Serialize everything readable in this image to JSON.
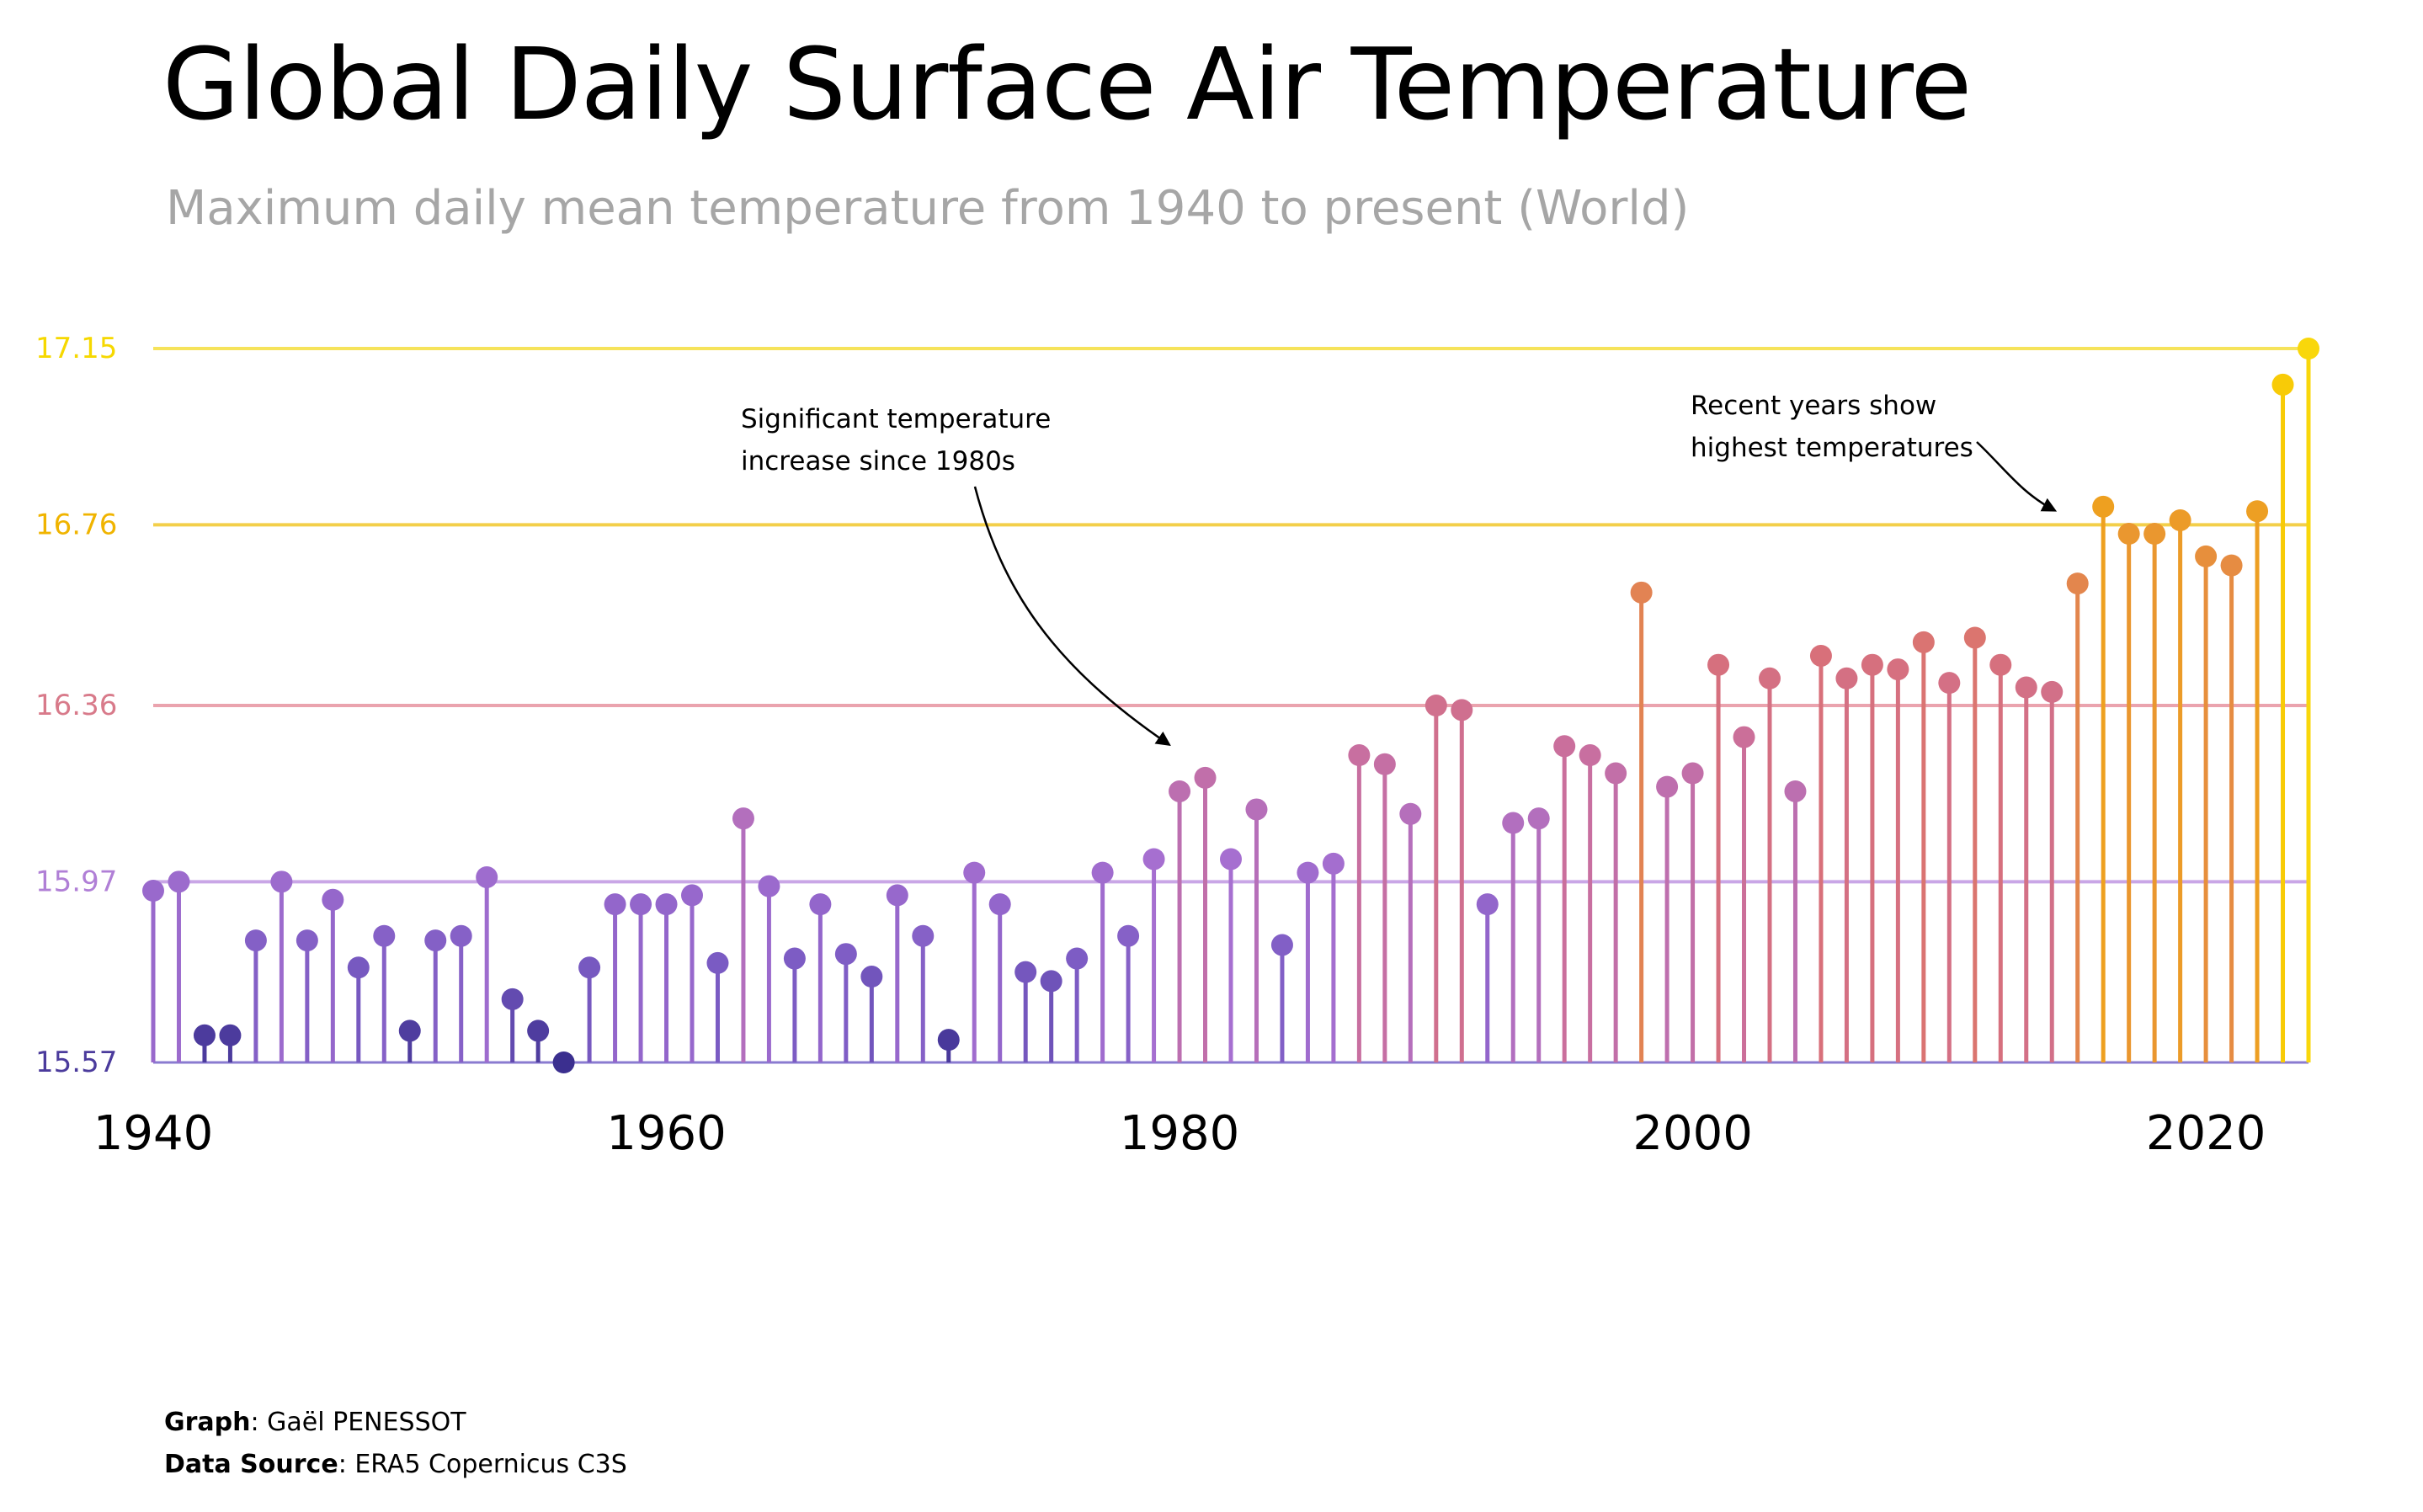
{
  "title": "Global Daily Surface Air Temperature",
  "subtitle": "Maximum daily mean temperature from 1940 to present (World)",
  "credits": {
    "graph_label": "Graph",
    "graph_value": ": Gaël PENESSOT",
    "source_label": "Data Source",
    "source_value": ": ERA5 Copernicus C3S"
  },
  "chart_data": {
    "type": "lollipop",
    "title": "Global Daily Surface Air Temperature",
    "subtitle": "Maximum daily mean temperature from 1940 to present (World)",
    "xlabel": "",
    "ylabel": "",
    "xlim": [
      1940,
      2024
    ],
    "ylim": [
      15.57,
      17.15
    ],
    "x_ticks": [
      1940,
      1960,
      1980,
      2000,
      2020
    ],
    "y_ticks": [
      {
        "value": 15.57,
        "label": "15.57",
        "color": "#4b3b9c"
      },
      {
        "value": 15.97,
        "label": "15.97",
        "color": "#b07fd6"
      },
      {
        "value": 16.36,
        "label": "16.36",
        "color": "#d87a8a"
      },
      {
        "value": 16.76,
        "label": "16.76",
        "color": "#f0b400"
      },
      {
        "value": 17.15,
        "label": "17.15",
        "color": "#f6d800"
      }
    ],
    "gridlines": [
      {
        "value": 15.97,
        "color": "#c9a6e6"
      },
      {
        "value": 16.36,
        "color": "#eaa3ae"
      },
      {
        "value": 16.76,
        "color": "#f3cf4a"
      },
      {
        "value": 17.15,
        "color": "#f6e35a"
      }
    ],
    "color_scale": [
      "#3b2f8f",
      "#7c5cc4",
      "#a66fd0",
      "#c86fa0",
      "#d8707a",
      "#e8903a",
      "#f5b400",
      "#f9d70b"
    ],
    "annotations": [
      {
        "text_lines": [
          "Significant temperature",
          "increase since 1980s"
        ],
        "target_year": 1980
      },
      {
        "text_lines": [
          "Recent years show",
          "highest temperatures"
        ],
        "target_year": 2016
      }
    ],
    "series": [
      {
        "x": [
          1940,
          1941,
          1942,
          1943,
          1944,
          1945,
          1946,
          1947,
          1948,
          1949,
          1950,
          1951,
          1952,
          1953,
          1954,
          1955,
          1956,
          1957,
          1958,
          1959,
          1960,
          1961,
          1962,
          1963,
          1964,
          1965,
          1966,
          1967,
          1968,
          1969,
          1970,
          1971,
          1972,
          1973,
          1974,
          1975,
          1976,
          1977,
          1978,
          1979,
          1980,
          1981,
          1982,
          1983,
          1984,
          1985,
          1986,
          1987,
          1988,
          1989,
          1990,
          1991,
          1992,
          1993,
          1994,
          1995,
          1996,
          1997,
          1998,
          1999,
          2000,
          2001,
          2002,
          2003,
          2004,
          2005,
          2006,
          2007,
          2008,
          2009,
          2010,
          2011,
          2012,
          2013,
          2014,
          2015,
          2016,
          2017,
          2018,
          2019,
          2020,
          2021,
          2022,
          2023,
          2024
        ],
        "y": [
          15.95,
          15.97,
          15.63,
          15.63,
          15.84,
          15.97,
          15.84,
          15.93,
          15.78,
          15.85,
          15.64,
          15.84,
          15.85,
          15.98,
          15.71,
          15.64,
          15.57,
          15.78,
          15.92,
          15.92,
          15.92,
          15.94,
          15.79,
          16.11,
          15.96,
          15.8,
          15.92,
          15.81,
          15.76,
          15.94,
          15.85,
          15.62,
          15.99,
          15.92,
          15.77,
          15.75,
          15.8,
          15.99,
          15.85,
          16.02,
          16.17,
          16.2,
          16.02,
          16.13,
          15.83,
          15.99,
          16.01,
          16.25,
          16.23,
          16.12,
          16.36,
          16.35,
          15.92,
          16.1,
          16.11,
          16.27,
          16.25,
          16.21,
          16.61,
          16.18,
          16.21,
          16.45,
          16.29,
          16.42,
          16.17,
          16.47,
          16.42,
          16.45,
          16.44,
          16.5,
          16.41,
          16.51,
          16.45,
          16.4,
          16.39,
          16.63,
          16.8,
          16.74,
          16.74,
          16.77,
          16.69,
          16.67,
          16.79,
          17.07,
          17.15
        ]
      }
    ]
  }
}
